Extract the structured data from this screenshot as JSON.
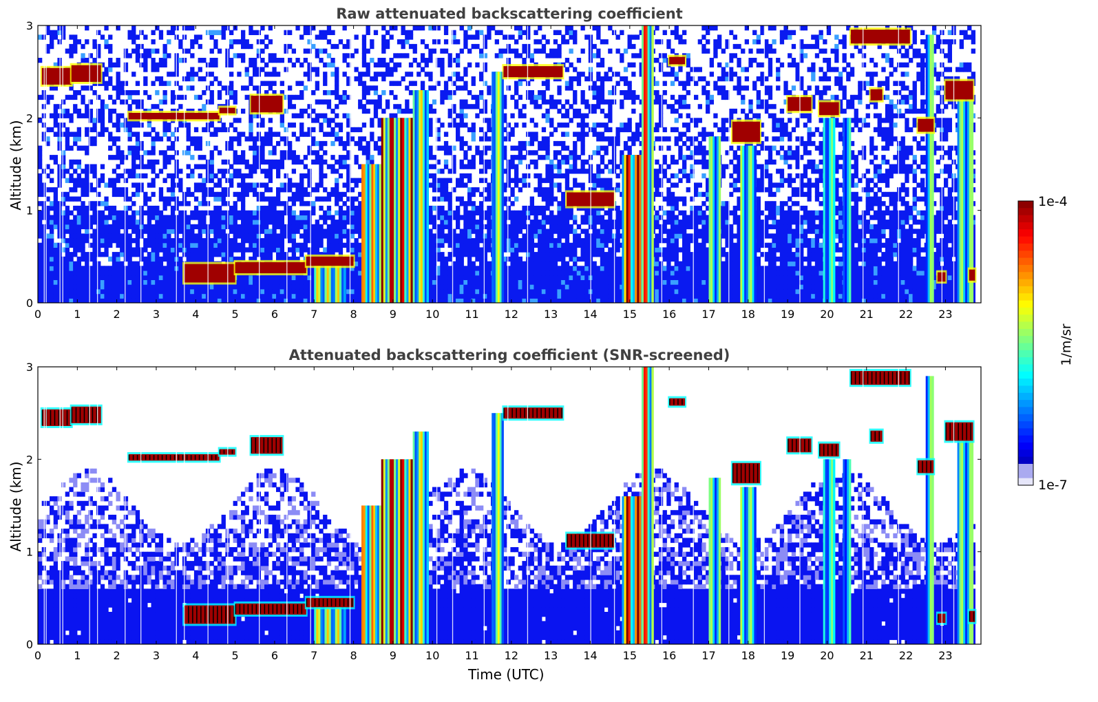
{
  "chart_data": [
    {
      "type": "heatmap",
      "title": "Raw attenuated backscattering coefficient",
      "xlabel": "",
      "ylabel": "Altitude (km)",
      "xlim": [
        0,
        23.9
      ],
      "ylim": [
        0,
        3
      ],
      "xticks": [
        "0",
        "1",
        "2",
        "3",
        "4",
        "5",
        "6",
        "7",
        "8",
        "9",
        "10",
        "11",
        "12",
        "13",
        "14",
        "15",
        "16",
        "17",
        "18",
        "19",
        "20",
        "21",
        "22",
        "23"
      ],
      "yticks": [
        "0",
        "1",
        "2",
        "3"
      ],
      "screened": false,
      "cloud_layers": [
        {
          "t0": 0.1,
          "t1": 0.85,
          "z": 2.45,
          "dz": 0.18
        },
        {
          "t0": 0.85,
          "t1": 1.6,
          "z": 2.48,
          "dz": 0.18
        },
        {
          "t0": 2.3,
          "t1": 4.6,
          "z": 2.02,
          "dz": 0.07
        },
        {
          "t0": 4.6,
          "t1": 5.0,
          "z": 2.08,
          "dz": 0.06
        },
        {
          "t0": 5.4,
          "t1": 6.2,
          "z": 2.15,
          "dz": 0.18
        },
        {
          "t0": 3.7,
          "t1": 5.0,
          "z": 0.32,
          "dz": 0.2
        },
        {
          "t0": 5.0,
          "t1": 6.8,
          "z": 0.38,
          "dz": 0.12
        },
        {
          "t0": 6.8,
          "t1": 8.0,
          "z": 0.45,
          "dz": 0.1
        },
        {
          "t0": 11.8,
          "t1": 13.3,
          "z": 2.5,
          "dz": 0.12
        },
        {
          "t0": 13.4,
          "t1": 14.6,
          "z": 1.12,
          "dz": 0.15
        },
        {
          "t0": 16.0,
          "t1": 16.4,
          "z": 2.62,
          "dz": 0.08
        },
        {
          "t0": 17.6,
          "t1": 18.3,
          "z": 1.85,
          "dz": 0.22
        },
        {
          "t0": 19.0,
          "t1": 19.6,
          "z": 2.15,
          "dz": 0.15
        },
        {
          "t0": 19.8,
          "t1": 20.3,
          "z": 2.1,
          "dz": 0.14
        },
        {
          "t0": 20.6,
          "t1": 22.1,
          "z": 2.88,
          "dz": 0.15
        },
        {
          "t0": 21.1,
          "t1": 21.4,
          "z": 2.25,
          "dz": 0.12
        },
        {
          "t0": 22.3,
          "t1": 22.7,
          "z": 1.92,
          "dz": 0.14
        },
        {
          "t0": 23.0,
          "t1": 23.7,
          "z": 2.3,
          "dz": 0.2
        },
        {
          "t0": 22.8,
          "t1": 23.0,
          "z": 0.28,
          "dz": 0.1
        },
        {
          "t0": 23.6,
          "t1": 23.75,
          "z": 0.3,
          "dz": 0.12
        }
      ],
      "rain_columns": [
        {
          "t0": 7.0,
          "t1": 7.8,
          "top": 0.45,
          "level": 0.55
        },
        {
          "t0": 8.2,
          "t1": 8.7,
          "top": 1.5,
          "level": 0.65
        },
        {
          "t0": 8.7,
          "t1": 9.5,
          "top": 2.0,
          "level": 0.85
        },
        {
          "t0": 9.5,
          "t1": 9.9,
          "top": 2.3,
          "level": 0.55
        },
        {
          "t0": 11.5,
          "t1": 11.8,
          "top": 2.5,
          "level": 0.5
        },
        {
          "t0": 14.8,
          "t1": 15.4,
          "top": 1.6,
          "level": 0.85
        },
        {
          "t0": 15.3,
          "t1": 15.6,
          "top": 3.0,
          "level": 0.75
        },
        {
          "t0": 17.0,
          "t1": 17.3,
          "top": 1.8,
          "level": 0.45
        },
        {
          "t0": 17.8,
          "t1": 18.2,
          "top": 1.7,
          "level": 0.45
        },
        {
          "t0": 19.9,
          "t1": 20.2,
          "top": 2.0,
          "level": 0.4
        },
        {
          "t0": 20.4,
          "t1": 20.6,
          "top": 2.0,
          "level": 0.35
        },
        {
          "t0": 22.5,
          "t1": 22.7,
          "top": 2.9,
          "level": 0.45
        },
        {
          "t0": 23.3,
          "t1": 23.7,
          "top": 2.2,
          "level": 0.45
        }
      ]
    },
    {
      "type": "heatmap",
      "title": "Attenuated backscattering coefficient (SNR-screened)",
      "xlabel": "Time (UTC)",
      "ylabel": "Altitude (km)",
      "xlim": [
        0,
        23.9
      ],
      "ylim": [
        0,
        3
      ],
      "xticks": [
        "0",
        "1",
        "2",
        "3",
        "4",
        "5",
        "6",
        "7",
        "8",
        "9",
        "10",
        "11",
        "12",
        "13",
        "14",
        "15",
        "16",
        "17",
        "18",
        "19",
        "20",
        "21",
        "22",
        "23"
      ],
      "yticks": [
        "0",
        "1",
        "2",
        "3"
      ],
      "screened": true
    }
  ],
  "colorbar": {
    "max_label": "1e-4",
    "min_label": "1e-7",
    "unit": "1/m/sr",
    "colormap": "jet",
    "colors": [
      "#e8e8f8",
      "#0000ff",
      "#00ffff",
      "#ffff00",
      "#ff0000",
      "#800000"
    ]
  }
}
